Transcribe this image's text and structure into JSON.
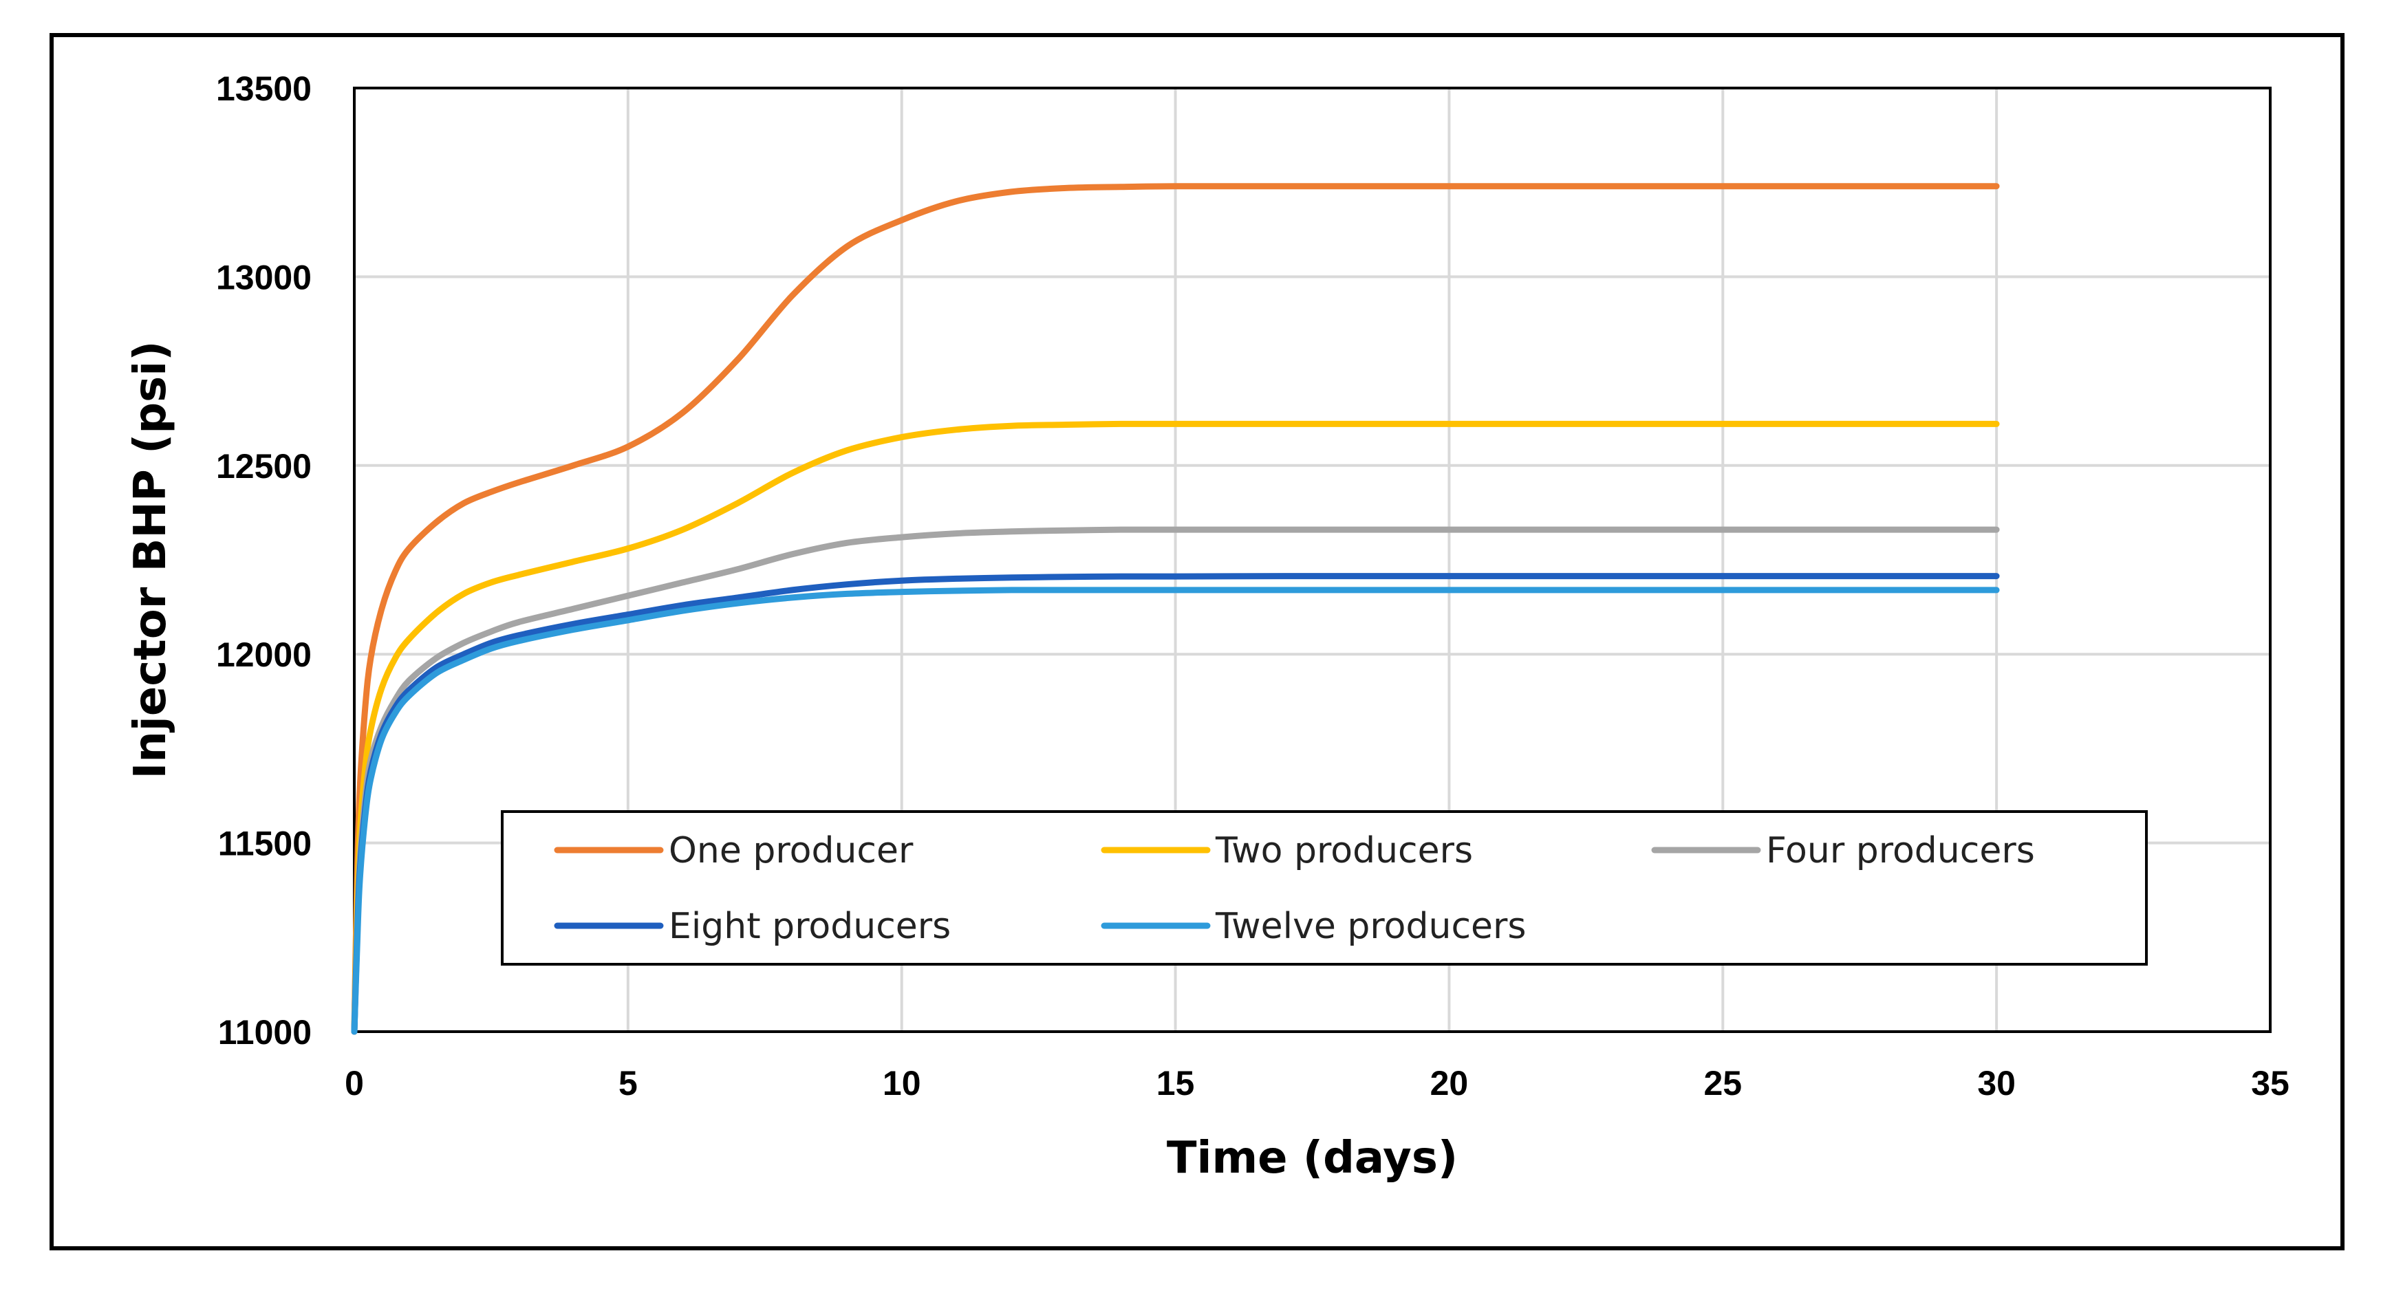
{
  "chart_data": {
    "type": "line",
    "title": "",
    "xlabel": "Time (days)",
    "ylabel": "Injector BHP (psi)",
    "xlim": [
      0,
      35
    ],
    "ylim": [
      11000,
      13500
    ],
    "x_ticks": [
      "0",
      "5",
      "10",
      "15",
      "20",
      "25",
      "30",
      "35"
    ],
    "y_ticks": [
      "11000",
      "11500",
      "12000",
      "12500",
      "13000",
      "13500"
    ],
    "grid": true,
    "legend_position": "bottom-center-inside",
    "x": [
      0,
      0.05,
      0.1,
      0.2,
      0.3,
      0.5,
      0.75,
      1,
      1.5,
      2,
      2.5,
      3,
      4,
      5,
      6,
      7,
      8,
      9,
      10,
      11,
      12,
      13,
      14,
      15,
      17,
      20,
      25,
      30
    ],
    "series": [
      {
        "name": "One producer",
        "color": "#ED7D31",
        "values": [
          11000,
          11400,
          11640,
          11860,
          11990,
          12120,
          12220,
          12280,
          12350,
          12400,
          12430,
          12455,
          12500,
          12550,
          12640,
          12780,
          12950,
          13080,
          13150,
          13200,
          13225,
          13235,
          13238,
          13240,
          13240,
          13240,
          13240,
          13240
        ]
      },
      {
        "name": "Two producers",
        "color": "#FFC000",
        "values": [
          11000,
          11320,
          11520,
          11700,
          11800,
          11910,
          11990,
          12040,
          12110,
          12160,
          12190,
          12210,
          12245,
          12280,
          12330,
          12400,
          12480,
          12540,
          12575,
          12595,
          12605,
          12608,
          12610,
          12610,
          12610,
          12610,
          12610,
          12610
        ]
      },
      {
        "name": "Four producers",
        "color": "#A5A5A5",
        "values": [
          11000,
          11260,
          11450,
          11620,
          11720,
          11810,
          11880,
          11930,
          11990,
          12030,
          12060,
          12085,
          12120,
          12155,
          12190,
          12225,
          12265,
          12295,
          12310,
          12320,
          12325,
          12328,
          12330,
          12330,
          12330,
          12330,
          12330,
          12330
        ]
      },
      {
        "name": "Eight producers",
        "color": "#1F5FBF",
        "values": [
          11000,
          11240,
          11420,
          11590,
          11690,
          11790,
          11860,
          11905,
          11965,
          12000,
          12030,
          12050,
          12080,
          12105,
          12130,
          12150,
          12170,
          12185,
          12195,
          12200,
          12203,
          12205,
          12206,
          12206,
          12207,
          12207,
          12207,
          12207
        ]
      },
      {
        "name": "Twelve producers",
        "color": "#2E9BDB",
        "values": [
          11000,
          11220,
          11400,
          11570,
          11670,
          11775,
          11845,
          11890,
          11950,
          11985,
          12015,
          12035,
          12065,
          12090,
          12115,
          12135,
          12150,
          12160,
          12165,
          12168,
          12170,
          12170,
          12170,
          12170,
          12170,
          12170,
          12170,
          12170
        ]
      }
    ]
  }
}
